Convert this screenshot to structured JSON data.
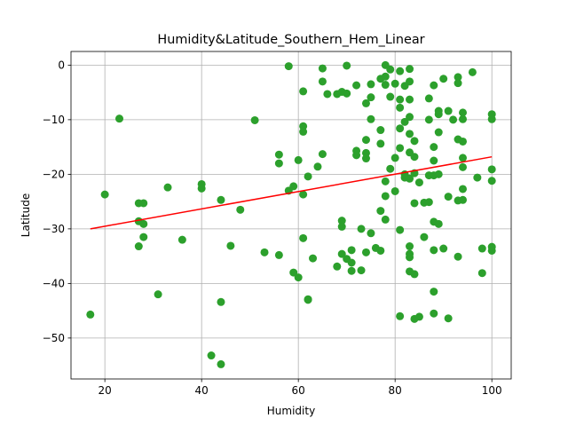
{
  "chart_data": {
    "type": "scatter",
    "title": "Humidity&Latitude_Southern_Hem_Linear",
    "xlabel": "Humidity",
    "ylabel": "Latitude",
    "xlim": [
      13,
      104
    ],
    "ylim": [
      -57.5,
      2.5
    ],
    "xticks": [
      20,
      40,
      60,
      80,
      100
    ],
    "yticks": [
      0,
      -10,
      -20,
      -30,
      -40,
      -50
    ],
    "xtick_labels": [
      "20",
      "40",
      "60",
      "80",
      "100"
    ],
    "ytick_labels": [
      "0",
      "−10",
      "−20",
      "−30",
      "−40",
      "−50"
    ],
    "grid": true,
    "colors": {
      "points": "#2ca02c",
      "regression": "#ff0000"
    },
    "regression_line": {
      "x": [
        17,
        100
      ],
      "y": [
        -30,
        -16.8
      ]
    },
    "points": [
      [
        17,
        -45.7
      ],
      [
        20,
        -23.7
      ],
      [
        23,
        -9.8
      ],
      [
        27,
        -25.3
      ],
      [
        27,
        -28.6
      ],
      [
        27,
        -33.2
      ],
      [
        28,
        -25.3
      ],
      [
        28,
        -29.1
      ],
      [
        28,
        -31.5
      ],
      [
        31,
        -42.0
      ],
      [
        33,
        -22.4
      ],
      [
        36,
        -32.0
      ],
      [
        40,
        -21.8
      ],
      [
        40,
        -22.6
      ],
      [
        42,
        -53.2
      ],
      [
        44,
        -24.7
      ],
      [
        44,
        -43.4
      ],
      [
        44,
        -54.8
      ],
      [
        46,
        -33.1
      ],
      [
        48,
        -26.5
      ],
      [
        51,
        -10.1
      ],
      [
        53,
        -34.3
      ],
      [
        56,
        -16.4
      ],
      [
        56,
        -18.0
      ],
      [
        56,
        -34.8
      ],
      [
        58,
        -0.2
      ],
      [
        58,
        -23.0
      ],
      [
        59,
        -22.2
      ],
      [
        59,
        -38.0
      ],
      [
        60,
        -17.4
      ],
      [
        60,
        -38.9
      ],
      [
        61,
        -4.8
      ],
      [
        61,
        -11.2
      ],
      [
        61,
        -12.2
      ],
      [
        61,
        -23.7
      ],
      [
        61,
        -31.7
      ],
      [
        62,
        -20.4
      ],
      [
        62,
        -42.9
      ],
      [
        62,
        -43.0
      ],
      [
        63,
        -35.4
      ],
      [
        64,
        -18.6
      ],
      [
        65,
        -0.6
      ],
      [
        65,
        -3.0
      ],
      [
        65,
        -16.3
      ],
      [
        66,
        -5.3
      ],
      [
        68,
        -5.3
      ],
      [
        68,
        -36.9
      ],
      [
        69,
        -4.9
      ],
      [
        69,
        -28.5
      ],
      [
        69,
        -29.6
      ],
      [
        69,
        -34.6
      ],
      [
        70,
        -0.1
      ],
      [
        70,
        -5.2
      ],
      [
        70,
        -35.5
      ],
      [
        71,
        -33.9
      ],
      [
        71,
        -36.2
      ],
      [
        71,
        -37.7
      ],
      [
        72,
        -3.7
      ],
      [
        72,
        -15.7
      ],
      [
        72,
        -16.5
      ],
      [
        73,
        -30.0
      ],
      [
        73,
        -37.6
      ],
      [
        74,
        -7.0
      ],
      [
        74,
        -13.7
      ],
      [
        74,
        -16.1
      ],
      [
        74,
        -17.1
      ],
      [
        74,
        -34.3
      ],
      [
        75,
        -3.5
      ],
      [
        75,
        -5.9
      ],
      [
        75,
        -9.9
      ],
      [
        75,
        -30.8
      ],
      [
        76,
        -33.5
      ],
      [
        77,
        -2.5
      ],
      [
        77,
        -11.9
      ],
      [
        77,
        -14.4
      ],
      [
        77,
        -26.7
      ],
      [
        77,
        -34.0
      ],
      [
        78,
        0.0
      ],
      [
        78,
        -2.1
      ],
      [
        78,
        -3.6
      ],
      [
        78,
        -21.3
      ],
      [
        78,
        -24.0
      ],
      [
        78,
        -28.3
      ],
      [
        79,
        -0.8
      ],
      [
        79,
        -5.8
      ],
      [
        79,
        -19.0
      ],
      [
        80,
        -3.4
      ],
      [
        80,
        -17.0
      ],
      [
        80,
        -23.1
      ],
      [
        81,
        -1.1
      ],
      [
        81,
        -6.3
      ],
      [
        81,
        -7.8
      ],
      [
        81,
        -11.6
      ],
      [
        81,
        -15.2
      ],
      [
        81,
        -30.2
      ],
      [
        81,
        -46.0
      ],
      [
        82,
        -3.8
      ],
      [
        82,
        -10.4
      ],
      [
        82,
        -20.0
      ],
      [
        82,
        -20.6
      ],
      [
        83,
        -0.7
      ],
      [
        83,
        -3.0
      ],
      [
        83,
        -6.3
      ],
      [
        83,
        -9.5
      ],
      [
        83,
        -12.6
      ],
      [
        83,
        -16.0
      ],
      [
        83,
        -20.8
      ],
      [
        83,
        -33.2
      ],
      [
        83,
        -34.6
      ],
      [
        83,
        -35.2
      ],
      [
        83,
        -37.8
      ],
      [
        84,
        -13.9
      ],
      [
        84,
        -16.8
      ],
      [
        84,
        -19.8
      ],
      [
        84,
        -25.3
      ],
      [
        84,
        -38.3
      ],
      [
        84,
        -46.5
      ],
      [
        85,
        -46.1
      ],
      [
        85,
        -21.5
      ],
      [
        86,
        -25.2
      ],
      [
        86,
        -31.5
      ],
      [
        87,
        -6.1
      ],
      [
        87,
        -10.0
      ],
      [
        87,
        -20.2
      ],
      [
        87,
        -25.1
      ],
      [
        88,
        -3.7
      ],
      [
        88,
        -15.0
      ],
      [
        88,
        -17.5
      ],
      [
        88,
        -20.2
      ],
      [
        88,
        -28.7
      ],
      [
        88,
        -33.9
      ],
      [
        88,
        -41.5
      ],
      [
        88,
        -45.5
      ],
      [
        89,
        -8.4
      ],
      [
        89,
        -9.0
      ],
      [
        89,
        -12.3
      ],
      [
        89,
        -20.0
      ],
      [
        89,
        -29.1
      ],
      [
        90,
        -2.5
      ],
      [
        90,
        -33.6
      ],
      [
        91,
        -8.4
      ],
      [
        91,
        -24.1
      ],
      [
        91,
        -46.4
      ],
      [
        92,
        -10.0
      ],
      [
        93,
        -2.2
      ],
      [
        93,
        -3.3
      ],
      [
        93,
        -13.6
      ],
      [
        93,
        -24.8
      ],
      [
        93,
        -35.1
      ],
      [
        94,
        -8.7
      ],
      [
        94,
        -9.9
      ],
      [
        94,
        -14.0
      ],
      [
        94,
        -17.0
      ],
      [
        94,
        -18.7
      ],
      [
        94,
        -22.7
      ],
      [
        94,
        -24.7
      ],
      [
        96,
        -1.3
      ],
      [
        97,
        -20.6
      ],
      [
        98,
        -33.6
      ],
      [
        98,
        -38.1
      ],
      [
        100,
        -9.0
      ],
      [
        100,
        -9.9
      ],
      [
        100,
        -19.1
      ],
      [
        100,
        -21.2
      ],
      [
        100,
        -33.3
      ],
      [
        100,
        -34.0
      ]
    ]
  }
}
